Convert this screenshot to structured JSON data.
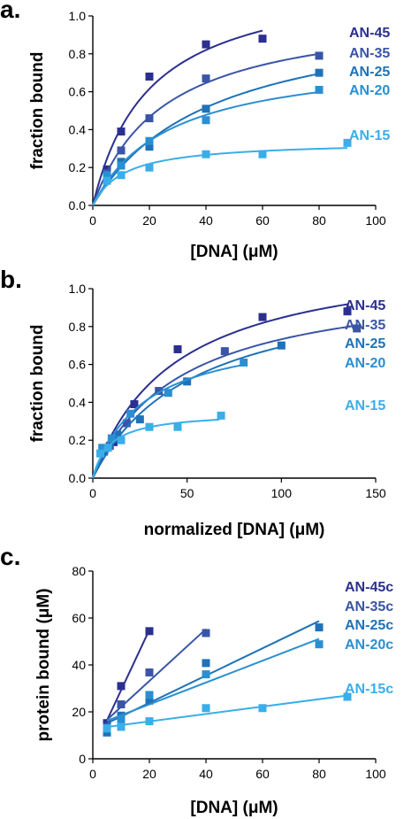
{
  "panels": [
    {
      "label": "a.",
      "chart_data": {
        "type": "scatter",
        "title": "",
        "xlabel": "[DNA] (μM)",
        "ylabel": "fraction bound",
        "xlim": [
          0,
          100
        ],
        "ylim": [
          0,
          1.0
        ],
        "xticks": [
          "0",
          "20",
          "40",
          "60",
          "80",
          "100"
        ],
        "yticks": [
          "0.0",
          "0.2",
          "0.4",
          "0.6",
          "0.8",
          "1.0"
        ],
        "fit_lines": true,
        "series": [
          {
            "name": "AN-45",
            "color": "#2b2f8f",
            "x": [
              5,
              10,
              20,
              40,
              60
            ],
            "y": [
              0.19,
              0.39,
              0.68,
              0.85,
              0.88
            ]
          },
          {
            "name": "AN-35",
            "color": "#3a55a6",
            "x": [
              5,
              10,
              20,
              40,
              80
            ],
            "y": [
              0.17,
              0.29,
              0.46,
              0.67,
              0.79
            ]
          },
          {
            "name": "AN-25",
            "color": "#1f72b8",
            "x": [
              5,
              10,
              20,
              40,
              80
            ],
            "y": [
              0.14,
              0.23,
              0.31,
              0.51,
              0.7
            ]
          },
          {
            "name": "AN-20",
            "color": "#2a8fd2",
            "x": [
              5,
              10,
              20,
              40,
              80
            ],
            "y": [
              0.16,
              0.21,
              0.34,
              0.45,
              0.61
            ]
          },
          {
            "name": "AN-15",
            "color": "#3aaee8",
            "x": [
              5,
              10,
              20,
              40,
              60,
              90
            ],
            "y": [
              0.13,
              0.16,
              0.2,
              0.27,
              0.27,
              0.33
            ]
          }
        ]
      }
    },
    {
      "label": "b.",
      "chart_data": {
        "type": "scatter",
        "title": "",
        "xlabel": "normalized [DNA] (μM)",
        "ylabel": "fraction bound",
        "xlim": [
          0,
          150
        ],
        "ylim": [
          0,
          1.0
        ],
        "xticks": [
          "0",
          "50",
          "100",
          "150"
        ],
        "yticks": [
          "0.0",
          "0.2",
          "0.4",
          "0.6",
          "0.8",
          "1.0"
        ],
        "fit_lines": true,
        "series": [
          {
            "name": "AN-45",
            "color": "#2b2f8f",
            "x": [
              11,
              22,
              45,
              90,
              135
            ],
            "y": [
              0.19,
              0.39,
              0.68,
              0.85,
              0.88
            ]
          },
          {
            "name": "AN-35",
            "color": "#3a55a6",
            "x": [
              9,
              18,
              35,
              70,
              140
            ],
            "y": [
              0.17,
              0.29,
              0.46,
              0.67,
              0.79
            ]
          },
          {
            "name": "AN-25",
            "color": "#1f72b8",
            "x": [
              6,
              13,
              25,
              50,
              100
            ],
            "y": [
              0.14,
              0.23,
              0.31,
              0.51,
              0.7
            ]
          },
          {
            "name": "AN-20",
            "color": "#2a8fd2",
            "x": [
              5,
              10,
              20,
              40,
              80
            ],
            "y": [
              0.16,
              0.21,
              0.34,
              0.45,
              0.61
            ]
          },
          {
            "name": "AN-15",
            "color": "#3aaee8",
            "x": [
              4,
              8,
              15,
              30,
              45,
              68
            ],
            "y": [
              0.13,
              0.16,
              0.2,
              0.27,
              0.27,
              0.33
            ]
          }
        ]
      }
    },
    {
      "label": "c.",
      "chart_data": {
        "type": "scatter",
        "title": "",
        "xlabel": "[DNA] (μM)",
        "ylabel": "protein bound (μM)",
        "xlim": [
          0,
          100
        ],
        "ylim": [
          0,
          80
        ],
        "xticks": [
          "0",
          "20",
          "40",
          "60",
          "80",
          "100"
        ],
        "yticks": [
          "0",
          "20",
          "40",
          "60",
          "80"
        ],
        "fit_lines": true,
        "series": [
          {
            "name": "AN-45",
            "color": "#2b2f8f",
            "x": [
              5,
              10,
              20
            ],
            "y": [
              15.2,
              31,
              54.4
            ]
          },
          {
            "name": "AN-35",
            "color": "#3a55a6",
            "x": [
              5,
              10,
              20,
              40
            ],
            "y": [
              13.6,
              23.2,
              36.8,
              53.6
            ]
          },
          {
            "name": "AN-25",
            "color": "#1f72b8",
            "x": [
              5,
              10,
              20,
              40,
              80
            ],
            "y": [
              11.2,
              18.4,
              24.8,
              40.8,
              56
            ]
          },
          {
            "name": "AN-20",
            "color": "#2a8fd2",
            "x": [
              5,
              10,
              20,
              40,
              80
            ],
            "y": [
              12.8,
              16.8,
              27.2,
              36,
              48.8
            ]
          },
          {
            "name": "AN-15",
            "color": "#3aaee8",
            "x": [
              5,
              10,
              20,
              40,
              60,
              90
            ],
            "y": [
              13,
              13.6,
              16,
              21.6,
              21.6,
              26.4
            ]
          }
        ],
        "legend_suffix": "c"
      }
    }
  ],
  "legend_labels": [
    "AN-45",
    "AN-35",
    "AN-25",
    "AN-20",
    "AN-15"
  ]
}
